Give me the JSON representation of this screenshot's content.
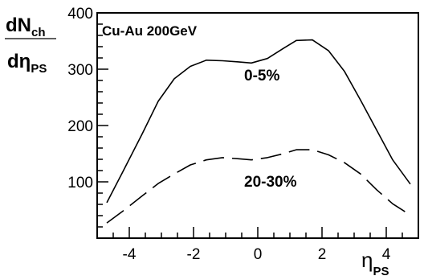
{
  "chart_data": {
    "type": "line",
    "title": "Cu-Au 200GeV",
    "ylabel": {
      "numerator_main": "dN",
      "numerator_sub": "ch",
      "denominator_main": "dη",
      "denominator_sub": "PS"
    },
    "xlabel": {
      "main": "η",
      "sub": "PS"
    },
    "xlim": [
      -5,
      5
    ],
    "ylim": [
      0,
      400
    ],
    "xticks": [
      "-4",
      "-2",
      "0",
      "2",
      "4"
    ],
    "yticks": [
      "100",
      "200",
      "300",
      "400"
    ],
    "grid": false,
    "legend": "none",
    "series": [
      {
        "name": "0-5%",
        "style": "solid",
        "x": [
          -4.7,
          -4.2,
          -3.6,
          -3.1,
          -2.6,
          -2.1,
          -1.6,
          -1.1,
          -0.6,
          -0.2,
          0.3,
          0.8,
          1.2,
          1.7,
          2.2,
          2.7,
          3.2,
          3.7,
          4.2,
          4.75
        ],
        "y": [
          63,
          118,
          185,
          243,
          283,
          305,
          316,
          315,
          313,
          311,
          319,
          337,
          351,
          352,
          333,
          296,
          245,
          192,
          139,
          96
        ]
      },
      {
        "name": "20-30%",
        "style": "dashed",
        "x": [
          -4.7,
          -4.2,
          -3.6,
          -3.1,
          -2.6,
          -2.1,
          -1.6,
          -1.1,
          -0.6,
          -0.2,
          0.3,
          0.8,
          1.2,
          1.7,
          2.2,
          2.7,
          3.2,
          3.7,
          4.2,
          4.75
        ],
        "y": [
          27,
          48,
          75,
          97,
          114,
          130,
          139,
          143,
          141,
          139,
          143,
          150,
          157,
          157,
          148,
          134,
          114,
          86,
          61,
          41
        ]
      }
    ]
  },
  "colors": {
    "line": "#000000",
    "background": "#ffffff"
  }
}
